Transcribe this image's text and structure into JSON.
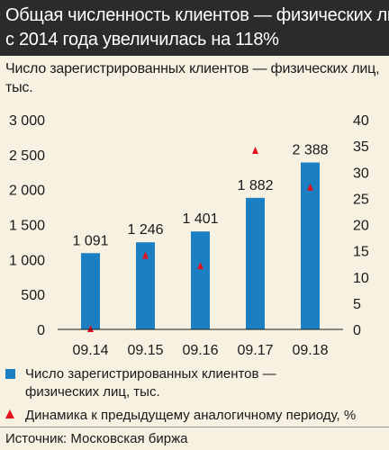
{
  "title": {
    "line1": "Общая численность клиентов — физических лиц",
    "line2": "с 2014 года увеличилась на 118%"
  },
  "subtitle": "Число зарегистрированных клиентов — физических лиц, тыс.",
  "chart_data": {
    "type": "bar",
    "categories": [
      "09.14",
      "09.15",
      "09.16",
      "09.17",
      "09.18"
    ],
    "series": [
      {
        "name": "Число зарегистрированных клиентов — физических лиц, тыс.",
        "type": "bar",
        "axis": "left",
        "values": [
          1091,
          1246,
          1401,
          1882,
          2388
        ],
        "labels": [
          "1 091",
          "1 246",
          "1 401",
          "1 882",
          "2 388"
        ],
        "color": "#1b7fc4"
      },
      {
        "name": "Динамика к предыдущему аналогичному периоду, %",
        "type": "scatter",
        "marker": "triangle",
        "axis": "right",
        "values": [
          0,
          14,
          12,
          34,
          27
        ],
        "color": "#e2111c"
      }
    ],
    "ylim_left": [
      0,
      3000
    ],
    "yticks_left": [
      "0",
      "500",
      "1 000",
      "1 500",
      "2 000",
      "2 500",
      "3 000"
    ],
    "ylim_right": [
      0,
      40
    ],
    "yticks_right": [
      "0",
      "5",
      "10",
      "15",
      "20",
      "25",
      "30",
      "35",
      "40"
    ],
    "grid": false,
    "legend_position": "bottom"
  },
  "legend": {
    "bar_label_line1": "Число зарегистрированных клиентов —",
    "bar_label_line2": "физических лиц, тыс.",
    "marker_label": "Динамика к предыдущему аналогичному периоду, %"
  },
  "source": "Источник: Московская биржа",
  "colors": {
    "background": "#f7f1e1",
    "header": "#2b2b2b",
    "bar": "#1b7fc4",
    "marker": "#e2111c"
  }
}
